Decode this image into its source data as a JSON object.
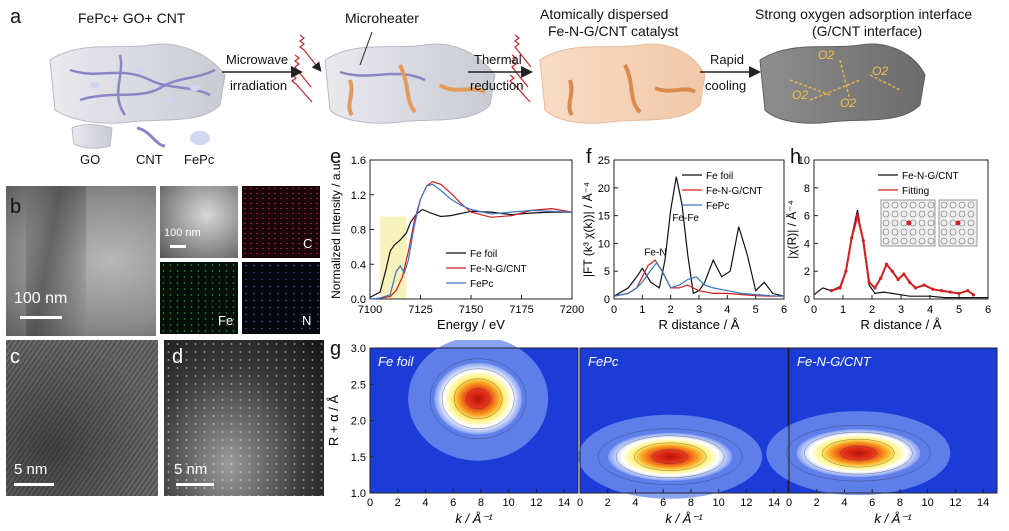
{
  "panel_labels": {
    "a": "a",
    "b": "b",
    "c": "c",
    "d": "d",
    "e": "e",
    "f": "f",
    "g": "g",
    "h": "h"
  },
  "schematic": {
    "stage1_title": "FePc+ GO+ CNT",
    "stage2_title": "Microheater",
    "stage3_title_line1": "Atomically dispersed",
    "stage3_title_line2": "Fe-N-G/CNT catalyst",
    "stage4_title_line1": "Strong oxygen adsorption interface",
    "stage4_title_line2": "(G/CNT interface)",
    "arrow1_line1": "Microwave",
    "arrow1_line2": "irradiation",
    "arrow2_line1": "Thermal",
    "arrow2_line2": "reduction",
    "arrow3_line1": "Rapid",
    "arrow3_line2": "cooling",
    "legend": [
      "GO",
      "CNT",
      "FePc"
    ],
    "oxygen_labels": [
      "O2",
      "O2",
      "O2",
      "O2"
    ]
  },
  "microscopy": {
    "b_scale": "100 nm",
    "b_inset_scale": "100 nm",
    "map_c": "C",
    "map_fe": "Fe",
    "map_n": "N",
    "c_scale": "5 nm",
    "d_scale": "5 nm"
  },
  "chart_data": [
    {
      "panel": "e",
      "type": "line",
      "xlabel": "Energy / eV",
      "ylabel": "Normalized Intensity / a.u.",
      "xlim": [
        7100,
        7200
      ],
      "ylim": [
        0.0,
        1.6
      ],
      "xticks": [
        "7100",
        "7125",
        "7150",
        "7175",
        "7200"
      ],
      "yticks": [
        "0.0",
        "0.4",
        "0.8",
        "1.2",
        "1.6"
      ],
      "highlight_range": [
        7105,
        7118
      ],
      "legend": "bottom-right",
      "series": [
        {
          "name": "Fe foil",
          "color": "#111111",
          "x": [
            7100,
            7105,
            7108,
            7110,
            7112,
            7115,
            7118,
            7120,
            7123,
            7126,
            7130,
            7135,
            7140,
            7150,
            7160,
            7170,
            7180,
            7190,
            7200
          ],
          "y": [
            0.02,
            0.08,
            0.35,
            0.55,
            0.62,
            0.68,
            0.76,
            0.88,
            0.98,
            1.03,
            0.99,
            0.95,
            0.96,
            1.01,
            1.0,
            0.97,
            0.99,
            1.0,
            1.0
          ]
        },
        {
          "name": "Fe-N-G/CNT",
          "color": "#d21e1e",
          "x": [
            7100,
            7105,
            7110,
            7113,
            7116,
            7119,
            7122,
            7125,
            7128,
            7131,
            7135,
            7140,
            7145,
            7150,
            7160,
            7170,
            7180,
            7190,
            7200
          ],
          "y": [
            0.0,
            0.01,
            0.03,
            0.1,
            0.25,
            0.55,
            0.9,
            1.15,
            1.3,
            1.35,
            1.32,
            1.22,
            1.1,
            1.0,
            0.94,
            0.96,
            1.02,
            1.04,
            1.0
          ]
        },
        {
          "name": "FePc",
          "color": "#3a76c4",
          "x": [
            7100,
            7105,
            7110,
            7113,
            7115,
            7117,
            7119,
            7122,
            7125,
            7128,
            7131,
            7135,
            7140,
            7145,
            7150,
            7160,
            7170,
            7180,
            7190,
            7200
          ],
          "y": [
            0.0,
            0.01,
            0.05,
            0.32,
            0.38,
            0.3,
            0.45,
            0.85,
            1.15,
            1.3,
            1.32,
            1.25,
            1.15,
            1.08,
            1.03,
            0.98,
            1.0,
            1.02,
            1.01,
            1.0
          ]
        }
      ]
    },
    {
      "panel": "f",
      "type": "line",
      "xlabel": "R distance / Å",
      "ylabel": "|FT (k³ χ(k))| / Å⁻⁴",
      "xlim": [
        0,
        6
      ],
      "ylim": [
        0,
        25
      ],
      "xticks": [
        "0",
        "1",
        "2",
        "3",
        "4",
        "5",
        "6"
      ],
      "yticks": [
        "0",
        "5",
        "10",
        "15",
        "20",
        "25"
      ],
      "legend": "top-right",
      "annotations": [
        "Fe-Fe",
        "Fe-N"
      ],
      "series": [
        {
          "name": "Fe foil",
          "color": "#111111",
          "x": [
            0,
            0.5,
            0.8,
            1.0,
            1.3,
            1.6,
            1.8,
            2.0,
            2.2,
            2.4,
            2.6,
            2.8,
            3.0,
            3.2,
            3.5,
            3.8,
            4.1,
            4.4,
            4.7,
            5.0,
            5.3,
            5.6,
            6.0
          ],
          "y": [
            0.5,
            2.0,
            4.0,
            5.5,
            3.0,
            2.0,
            7.0,
            16.0,
            22.0,
            17.0,
            8.0,
            1.0,
            1.5,
            3.0,
            7.0,
            4.0,
            5.0,
            13.0,
            8.0,
            1.5,
            3.0,
            1.0,
            0.5
          ]
        },
        {
          "name": "Fe-N-G/CNT",
          "color": "#d21e1e",
          "x": [
            0,
            0.5,
            0.8,
            1.0,
            1.2,
            1.45,
            1.7,
            2.0,
            2.3,
            2.6,
            3.0,
            3.5,
            4.0,
            4.5,
            5.0,
            5.5,
            6.0
          ],
          "y": [
            0.5,
            1.0,
            2.0,
            4.0,
            6.0,
            7.0,
            5.0,
            2.0,
            2.0,
            2.5,
            1.5,
            1.0,
            1.0,
            0.8,
            0.6,
            0.5,
            0.5
          ]
        },
        {
          "name": "FePc",
          "color": "#3a76c4",
          "x": [
            0,
            0.5,
            0.8,
            1.0,
            1.2,
            1.5,
            1.7,
            2.0,
            2.3,
            2.6,
            2.9,
            3.2,
            3.5,
            4.0,
            4.5,
            5.0,
            5.5,
            6.0
          ],
          "y": [
            0.5,
            1.0,
            2.0,
            3.0,
            4.5,
            6.5,
            5.0,
            2.0,
            2.5,
            3.5,
            4.0,
            2.5,
            2.0,
            1.5,
            1.0,
            0.8,
            0.6,
            0.5
          ]
        }
      ]
    },
    {
      "panel": "h",
      "type": "line",
      "xlabel": "R distance / Å",
      "ylabel": "|χ(R)| / Å⁻⁴",
      "xlim": [
        0,
        6
      ],
      "ylim": [
        0,
        10
      ],
      "xticks": [
        "0",
        "1",
        "2",
        "3",
        "4",
        "5",
        "6"
      ],
      "yticks": [
        "0",
        "2",
        "4",
        "6",
        "8",
        "10"
      ],
      "legend": "top-right",
      "series": [
        {
          "name": "Fe-N-G/CNT",
          "color": "#111111",
          "x": [
            0,
            0.3,
            0.6,
            0.9,
            1.1,
            1.3,
            1.5,
            1.7,
            1.9,
            2.1,
            2.4,
            2.7,
            3.0,
            3.3,
            3.6,
            4.0,
            4.5,
            5.0,
            5.5,
            6.0
          ],
          "y": [
            0.3,
            0.8,
            0.6,
            0.9,
            2.0,
            4.5,
            6.4,
            4.0,
            1.0,
            0.4,
            0.5,
            0.4,
            0.3,
            0.2,
            0.2,
            0.2,
            0.1,
            0.1,
            0.1,
            0.1
          ]
        },
        {
          "name": "Fitting",
          "color": "#d21e1e",
          "x": [
            0.6,
            0.9,
            1.1,
            1.3,
            1.5,
            1.7,
            1.9,
            2.1,
            2.3,
            2.5,
            2.7,
            2.9,
            3.1,
            3.3,
            3.5,
            3.8,
            4.1,
            4.4,
            4.7,
            5.0,
            5.3,
            5.5
          ],
          "y": [
            0.6,
            0.8,
            2.0,
            4.4,
            6.0,
            4.2,
            1.2,
            0.8,
            1.5,
            2.5,
            2.0,
            1.4,
            1.8,
            1.2,
            0.8,
            1.0,
            0.7,
            0.6,
            0.5,
            0.4,
            0.6,
            0.3
          ]
        }
      ]
    },
    {
      "panel": "g",
      "type": "heatmap",
      "xlabel": "k / Å⁻¹",
      "ylabel": "R + α / Å",
      "xlim": [
        0,
        15
      ],
      "ylim": [
        1.0,
        3.0
      ],
      "xticks": [
        "0",
        "2",
        "4",
        "6",
        "8",
        "10",
        "12",
        "14"
      ],
      "yticks": [
        "1.0",
        "1.5",
        "2.0",
        "2.5",
        "3.0"
      ],
      "maps": [
        {
          "name": "Fe foil",
          "peak_k": 7.8,
          "peak_R": 2.3
        },
        {
          "name": "FePc",
          "peak_k": 6.5,
          "peak_R": 1.5
        },
        {
          "name": "Fe-N-G/CNT",
          "peak_k": 5.0,
          "peak_R": 1.55
        }
      ]
    }
  ]
}
